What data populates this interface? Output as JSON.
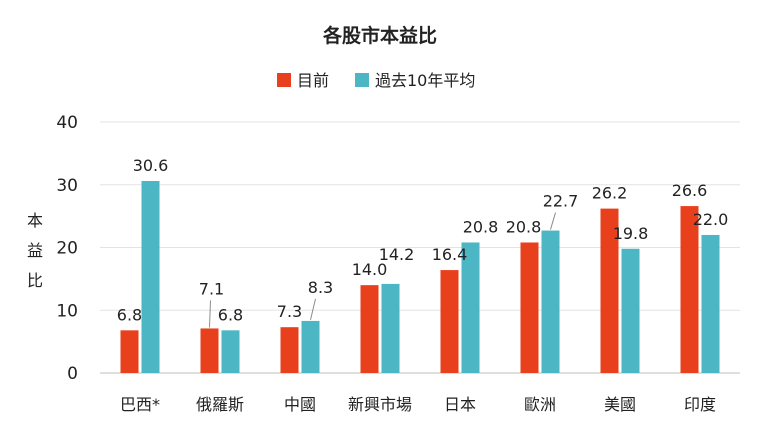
{
  "chart_data": {
    "type": "bar",
    "title": "各股市本益比",
    "ylabel": "本益比",
    "xlabel": "",
    "ylim": [
      0,
      40
    ],
    "yticks": [
      0,
      10,
      20,
      30,
      40
    ],
    "grid": true,
    "legend_position": "top-center",
    "categories": [
      "巴西*",
      "俄羅斯",
      "中國",
      "新興市場",
      "日本",
      "歐洲",
      "美國",
      "印度"
    ],
    "series": [
      {
        "name": "目前",
        "color": "#e8401c",
        "values": [
          6.8,
          7.1,
          7.3,
          14.0,
          16.4,
          20.8,
          26.2,
          26.6
        ],
        "labels": [
          "6.8",
          "7.1",
          "7.3",
          "14.0",
          "16.4",
          "20.8",
          "26.2",
          "26.6"
        ]
      },
      {
        "name": "過去10年平均",
        "color": "#4db6c5",
        "values": [
          30.6,
          6.8,
          8.3,
          14.2,
          20.8,
          22.7,
          19.8,
          22.0
        ],
        "labels": [
          "30.6",
          "6.8",
          "8.3",
          "14.2",
          "20.8",
          "22.7",
          "19.8",
          "22.0"
        ]
      }
    ]
  }
}
